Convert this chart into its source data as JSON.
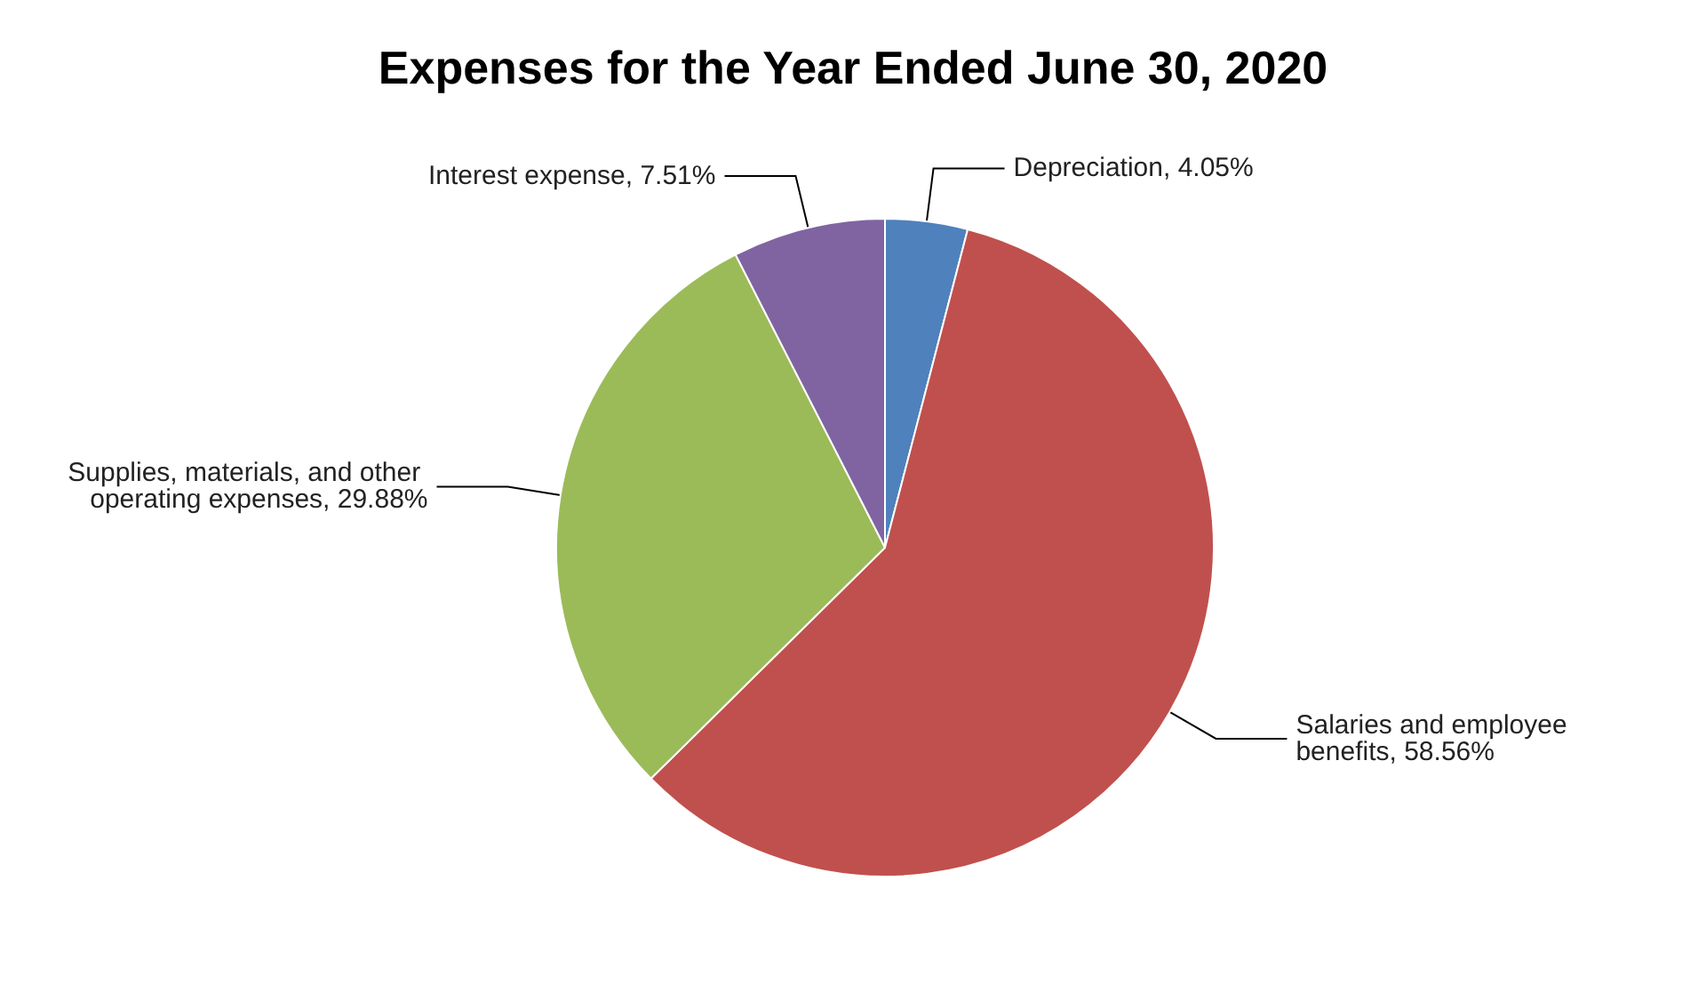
{
  "chart_data": {
    "type": "pie",
    "title": "Expenses for the Year Ended June 30, 2020",
    "categories": [
      "Depreciation",
      "Salaries and employee benefits",
      "Supplies, materials, and other operating expenses",
      "Interest expense"
    ],
    "values": [
      4.05,
      58.56,
      29.88,
      7.51
    ],
    "colors": [
      "#4f81bd",
      "#c0504d",
      "#9bbb59",
      "#8064a2"
    ],
    "value_labels": [
      "4.05%",
      "58.56%",
      "29.88%",
      "7.51%"
    ],
    "legend": false
  }
}
